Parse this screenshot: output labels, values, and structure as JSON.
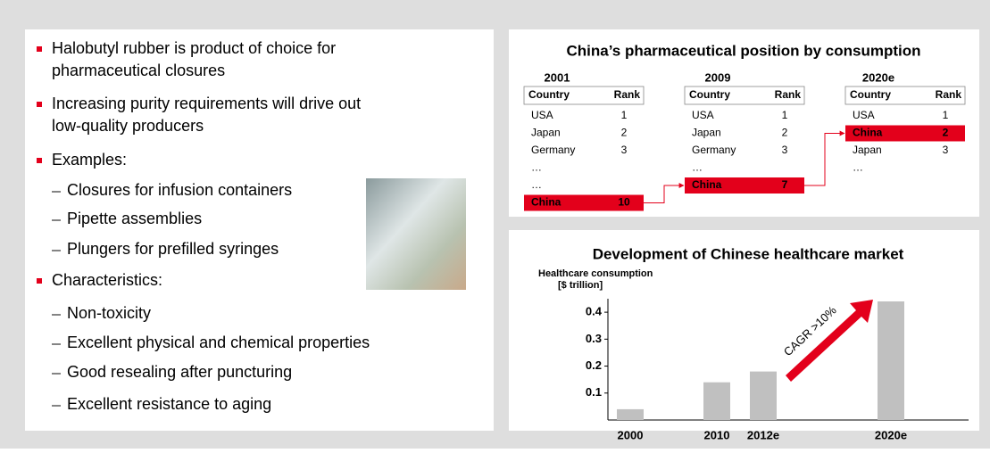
{
  "bullets": [
    {
      "level": 1,
      "lines": [
        "Halobutyl rubber is product of choice for",
        "pharmaceutical closures"
      ]
    },
    {
      "level": 1,
      "lines": [
        "Increasing purity requirements will drive out",
        "low-quality producers"
      ]
    },
    {
      "level": 1,
      "lines": [
        "Examples:"
      ]
    },
    {
      "level": 2,
      "lines": [
        "Closures for infusion containers"
      ]
    },
    {
      "level": 2,
      "lines": [
        "Pipette assemblies"
      ]
    },
    {
      "level": 2,
      "lines": [
        "Plungers for prefilled syringes"
      ]
    },
    {
      "level": 1,
      "lines": [
        "Characteristics:"
      ]
    },
    {
      "level": 2,
      "lines": [
        "Non-toxicity"
      ]
    },
    {
      "level": 2,
      "lines": [
        "Excellent physical and chemical properties"
      ]
    },
    {
      "level": 2,
      "lines": [
        "Good resealing after puncturing"
      ]
    },
    {
      "level": 2,
      "lines": [
        "Excellent resistance to aging"
      ]
    }
  ],
  "ranking": {
    "title": "China’s pharmaceutical position by consumption",
    "highlight_color": "#e3001b",
    "tables": [
      {
        "year": "2001",
        "header": [
          "Country",
          "Rank"
        ],
        "highlight_row": 5,
        "rows": [
          [
            "USA",
            1
          ],
          [
            "Japan",
            2
          ],
          [
            "Germany",
            3
          ],
          [
            "…"
          ],
          [
            "…"
          ],
          [
            "China",
            10
          ]
        ]
      },
      {
        "year": "2009",
        "header": [
          "Country",
          "Rank"
        ],
        "highlight_row": 4,
        "rows": [
          [
            "USA",
            1
          ],
          [
            "Japan",
            2
          ],
          [
            "Germany",
            3
          ],
          [
            "…"
          ],
          [
            "China",
            7
          ]
        ]
      },
      {
        "year": "2020e",
        "header": [
          "Country",
          "Rank"
        ],
        "highlight_row": 1,
        "rows": [
          [
            "USA",
            1
          ],
          [
            "China",
            2
          ],
          [
            "Japan",
            3
          ],
          [
            "…"
          ]
        ]
      }
    ]
  },
  "market_chart": {
    "type": "bar",
    "title": "Development of Chinese healthcare market",
    "y_label": [
      "Healthcare consumption",
      "[$ trillion]"
    ],
    "categories": [
      "2000",
      "2010",
      "2012e",
      "2020e"
    ],
    "values": [
      0.04,
      0.14,
      0.18,
      0.44
    ],
    "color": "#c0c0c0",
    "ylim": [
      0,
      0.45
    ],
    "yticks": [
      0.1,
      0.2,
      0.3,
      0.4
    ],
    "annotation": "CAGR >10%",
    "annotation_color": "#e3001b"
  }
}
